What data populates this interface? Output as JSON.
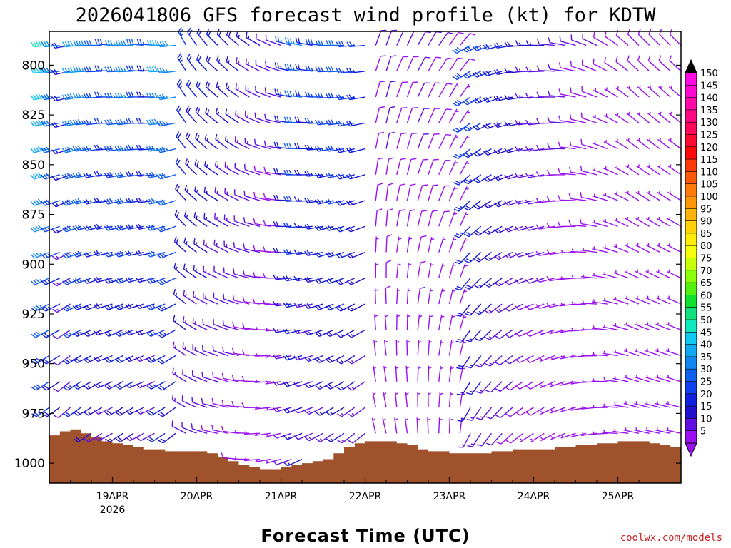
{
  "chart_data": {
    "type": "wind-barb-profile",
    "title": "2026041806 GFS forecast wind profile (kt) for KDTW",
    "xlabel": "Forecast Time (UTC)",
    "ylabel": "",
    "credit": "coolwx.com/models",
    "y_axis": {
      "unit": "hPa",
      "range": [
        1010,
        783
      ],
      "ticks": [
        "800",
        "825",
        "850",
        "875",
        "900",
        "925",
        "950",
        "975",
        "1000"
      ]
    },
    "x_axis": {
      "range_hours": [
        0,
        180
      ],
      "ticks": [
        {
          "hour": 18,
          "label": "19APR",
          "sub": "2026"
        },
        {
          "hour": 42,
          "label": "20APR",
          "sub": ""
        },
        {
          "hour": 66,
          "label": "21APR",
          "sub": ""
        },
        {
          "hour": 90,
          "label": "22APR",
          "sub": ""
        },
        {
          "hour": 114,
          "label": "23APR",
          "sub": ""
        },
        {
          "hour": 138,
          "label": "24APR",
          "sub": ""
        },
        {
          "hour": 162,
          "label": "25APR",
          "sub": ""
        }
      ]
    },
    "levels_hpa": [
      790,
      803,
      816,
      829,
      842,
      855,
      868,
      881,
      894,
      907,
      920,
      933,
      946,
      959,
      972,
      985,
      998
    ],
    "surface_pressure": {
      "hours": [
        0,
        3,
        6,
        9,
        12,
        15,
        18,
        21,
        24,
        27,
        30,
        33,
        36,
        39,
        42,
        45,
        48,
        51,
        54,
        57,
        60,
        63,
        66,
        69,
        72,
        75,
        78,
        81,
        84,
        87,
        90,
        93,
        96,
        99,
        102,
        105,
        108,
        111,
        114,
        117,
        120,
        123,
        126,
        129,
        132,
        135,
        138,
        141,
        144,
        147,
        150,
        153,
        156,
        159,
        162,
        165,
        168,
        171,
        174,
        177,
        180
      ],
      "hpa": [
        986,
        984,
        983,
        985,
        987,
        989,
        990,
        991,
        992,
        993,
        993,
        994,
        994,
        994,
        994,
        995,
        997,
        999,
        1001,
        1002,
        1003,
        1003,
        1002,
        1001,
        1000,
        999,
        998,
        995,
        992,
        990,
        989,
        989,
        989,
        990,
        991,
        993,
        994,
        994,
        995,
        995,
        995,
        995,
        994,
        994,
        993,
        993,
        993,
        993,
        992,
        992,
        991,
        991,
        990,
        990,
        989,
        989,
        989,
        990,
        991,
        992,
        992
      ]
    },
    "wind_segments": [
      {
        "h0": 0,
        "h1": 36,
        "step": 3,
        "dir": [
          265,
          265,
          260,
          265,
          270,
          270,
          275,
          270,
          270,
          275,
          275,
          270,
          265,
          270,
          265,
          260,
          255,
          255,
          250,
          245,
          245,
          240,
          240,
          235,
          230,
          230,
          225,
          220,
          220,
          215,
          210,
          205,
          200,
          200,
          195,
          190,
          190
        ],
        "spd": [
          50,
          35,
          20,
          42,
          38,
          30,
          28,
          35,
          38,
          30,
          25,
          42,
          38,
          35,
          40,
          38,
          35,
          30,
          38,
          32,
          30,
          28,
          30,
          25,
          28,
          22,
          25,
          20,
          18,
          22,
          18,
          20,
          15,
          18,
          12,
          15,
          10
        ]
      },
      {
        "h0": 39,
        "h1": 66,
        "step": 3,
        "dir": [
          330,
          325,
          320,
          315,
          315,
          310,
          305,
          300,
          295,
          290,
          285,
          280,
          280,
          275,
          270,
          270,
          265
        ],
        "spd": [
          25,
          22,
          22,
          20,
          18,
          18,
          15,
          15,
          12,
          12,
          10,
          10,
          10,
          8,
          8,
          8,
          5
        ]
      },
      {
        "h0": 69,
        "h1": 90,
        "step": 3,
        "dir": [
          285,
          280,
          280,
          275,
          270,
          270,
          265,
          265,
          260,
          260,
          255,
          255,
          250,
          250,
          245,
          245,
          240
        ],
        "spd": [
          25,
          35,
          22,
          28,
          30,
          32,
          28,
          25,
          20,
          18,
          15,
          15,
          12,
          12,
          10,
          10,
          8
        ]
      },
      {
        "h0": 93,
        "h1": 117,
        "step": 3,
        "dir": [
          20,
          20,
          25,
          25,
          30,
          30,
          35,
          35,
          40,
          40,
          40,
          45,
          45,
          45,
          50,
          50,
          50
        ],
        "spd": [
          10,
          12,
          10,
          10,
          12,
          10,
          10,
          8,
          8,
          8,
          5,
          5,
          5,
          5,
          5,
          5,
          5
        ]
      },
      {
        "h0": 120,
        "h1": 180,
        "step": 3,
        "dir": [
          240,
          245,
          250,
          255,
          260,
          265,
          270,
          270,
          275,
          280,
          285,
          290,
          295,
          300,
          305,
          310,
          315
        ],
        "spd": [
          30,
          28,
          25,
          22,
          20,
          18,
          15,
          15,
          12,
          12,
          10,
          10,
          10,
          8,
          8,
          8,
          8
        ]
      }
    ],
    "colorbar": {
      "labels": [
        "150",
        "145",
        "140",
        "135",
        "130",
        "125",
        "120",
        "115",
        "110",
        "105",
        "100",
        "95",
        "90",
        "85",
        "80",
        "75",
        "70",
        "65",
        "60",
        "55",
        "50",
        "45",
        "40",
        "35",
        "30",
        "25",
        "20",
        "15",
        "10",
        "5"
      ],
      "colors": [
        "#ff0ae0",
        "#ff0ad0",
        "#ff0aa8",
        "#ff0a80",
        "#ff0a5a",
        "#ff0a30",
        "#ff0a0a",
        "#ff3a0a",
        "#ff5a0a",
        "#ff7a0a",
        "#ff960a",
        "#ffb40a",
        "#ffd20a",
        "#ffec0a",
        "#f5ff0a",
        "#c8ff0a",
        "#8cff0a",
        "#50f010",
        "#10e030",
        "#10e080",
        "#10e8c0",
        "#10c8f0",
        "#10a8f0",
        "#1088f0",
        "#1060f0",
        "#1040f0",
        "#1020e0",
        "#2010d0",
        "#6010e0",
        "#9a10f0"
      ]
    },
    "colors": {
      "terrain": "#a0522d",
      "frame": "#000000"
    }
  }
}
